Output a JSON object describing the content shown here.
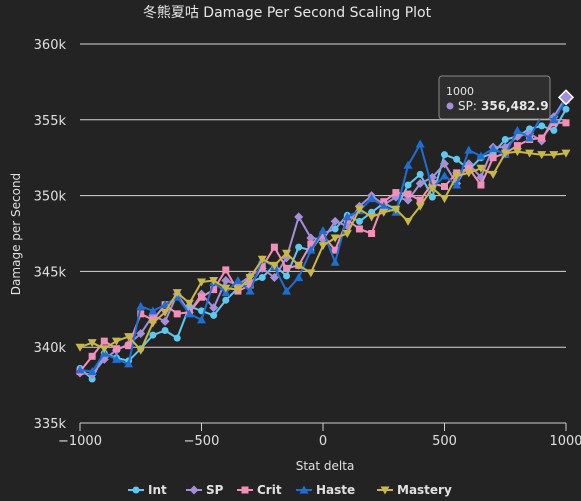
{
  "chart_data": {
    "type": "line",
    "title": "冬熊夏咕 Damage Per Second Scaling Plot",
    "xlabel": "Stat delta",
    "ylabel": "Damage per Second",
    "xlim": [
      -1000,
      1000
    ],
    "ylim": [
      335000,
      360000
    ],
    "x_ticks": [
      -1000,
      -500,
      0,
      500,
      1000
    ],
    "x_tick_labels": [
      "−1000",
      "−500",
      "0",
      "500",
      "1000"
    ],
    "y_ticks": [
      335000,
      340000,
      345000,
      350000,
      355000,
      360000
    ],
    "y_tick_labels": [
      "335k",
      "340k",
      "345k",
      "350k",
      "355k",
      "360k"
    ],
    "grid": "horizontal",
    "legend_position": "bottom",
    "x": [
      -1000,
      -950,
      -900,
      -850,
      -800,
      -750,
      -700,
      -650,
      -600,
      -550,
      -500,
      -450,
      -400,
      -350,
      -300,
      -250,
      -200,
      -150,
      -100,
      -50,
      0,
      50,
      100,
      150,
      200,
      250,
      300,
      350,
      400,
      450,
      500,
      550,
      600,
      650,
      700,
      750,
      800,
      850,
      900,
      950,
      1000
    ],
    "series": [
      {
        "name": "Int",
        "color": "#5ec8f0",
        "marker": "circle",
        "values": [
          338600,
          337900,
          339600,
          339300,
          339100,
          339900,
          340800,
          341100,
          340600,
          342700,
          342400,
          342100,
          343100,
          343900,
          344300,
          344600,
          345400,
          344700,
          346600,
          346400,
          347500,
          347800,
          348700,
          348300,
          348900,
          349500,
          349100,
          350700,
          351400,
          349900,
          352700,
          352400,
          351700,
          352500,
          352800,
          353700,
          353900,
          354400,
          354600,
          354300,
          355700
        ]
      },
      {
        "name": "SP",
        "color": "#a48fd8",
        "marker": "diamond",
        "values": [
          338300,
          338200,
          339200,
          339800,
          340200,
          340900,
          342100,
          341700,
          343500,
          342300,
          343500,
          342600,
          344400,
          344100,
          344700,
          345200,
          344600,
          345900,
          348600,
          347200,
          347100,
          348300,
          348000,
          349300,
          350000,
          349400,
          349900,
          349700,
          350800,
          351200,
          352100,
          350800,
          352100,
          351200,
          353200,
          353200,
          353900,
          354100,
          353600,
          355200,
          356483
        ]
      },
      {
        "name": "Crit",
        "color": "#f28fb8",
        "marker": "square",
        "values": [
          338400,
          339400,
          340400,
          339900,
          340100,
          342200,
          341800,
          342800,
          342200,
          342300,
          343300,
          343800,
          345100,
          343700,
          344100,
          345300,
          346600,
          345200,
          345400,
          346800,
          347400,
          346400,
          348400,
          347800,
          347500,
          349600,
          350200,
          350100,
          349700,
          350800,
          350600,
          351500,
          351800,
          350700,
          352500,
          352800,
          353300,
          353700,
          353800,
          354800,
          354800
        ]
      },
      {
        "name": "Haste",
        "color": "#1f6fd1",
        "marker": "triangle",
        "values": [
          338500,
          338400,
          339600,
          339200,
          338900,
          342700,
          342400,
          342800,
          343300,
          342200,
          341800,
          344300,
          343600,
          344400,
          343700,
          345800,
          345300,
          343700,
          344600,
          346400,
          347700,
          345600,
          348600,
          349000,
          349800,
          349300,
          348900,
          352000,
          353400,
          350500,
          351300,
          350700,
          353000,
          352600,
          353100,
          352700,
          354300,
          353800,
          355300,
          355000,
          356300
        ]
      },
      {
        "name": "Mastery",
        "color": "#c8b84a",
        "marker": "triangle-down",
        "values": [
          340000,
          340300,
          339900,
          340400,
          340700,
          339800,
          341600,
          342300,
          343600,
          342900,
          344300,
          344400,
          343900,
          343800,
          344600,
          345800,
          345400,
          346200,
          345400,
          344900,
          346700,
          347200,
          347500,
          349100,
          348600,
          348900,
          349100,
          348300,
          349300,
          350500,
          349800,
          351300,
          351500,
          351800,
          351400,
          352800,
          352900,
          352800,
          352700,
          352700,
          352800
        ]
      }
    ],
    "tooltip": {
      "header": "1000",
      "series_label": "SP:",
      "value_text": "356,482.9",
      "color": "#a48fd8"
    }
  }
}
